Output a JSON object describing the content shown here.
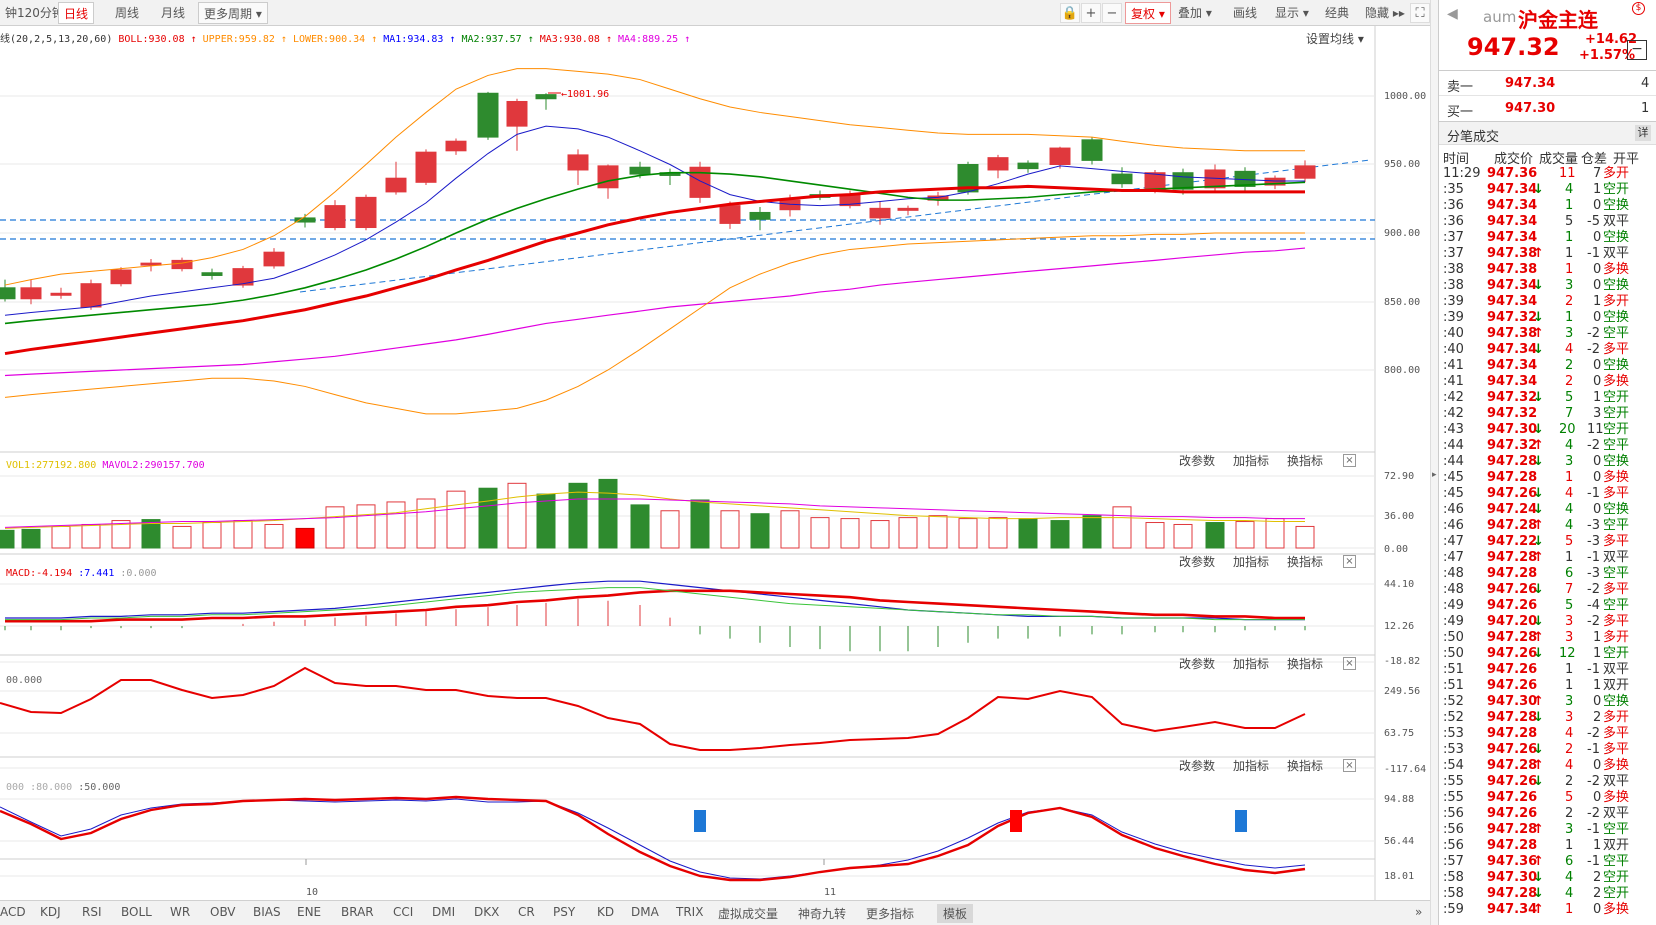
{
  "toolbar": {
    "left_tabs": [
      "钟",
      "120分钟",
      "日线",
      "周线",
      "月线",
      "更多周期"
    ],
    "active_tab": "日线",
    "right_items": [
      "复权",
      "叠加",
      "画线",
      "显示",
      "经典",
      "隐藏"
    ],
    "lock_icon": "lock-icon",
    "plus_icon": "plus-icon",
    "minus_icon": "minus-icon",
    "fullscreen_icon": "fullscreen-icon"
  },
  "indicator_line": {
    "prefix": "线(20,2,5,13,20,60)",
    "items": [
      {
        "text": "BOLL:930.08",
        "color": "#e60000",
        "arrow": "↑"
      },
      {
        "text": "UPPER:959.82",
        "color": "#ff8c00",
        "arrow": "↑"
      },
      {
        "text": "LOWER:900.34",
        "color": "#ff8c00",
        "arrow": "↑"
      },
      {
        "text": "MA1:934.83",
        "color": "#0000ff",
        "arrow": "↑"
      },
      {
        "text": "MA2:937.57",
        "color": "#008000",
        "arrow": "↑"
      },
      {
        "text": "MA3:930.08",
        "color": "#e60000",
        "arrow": "↑"
      },
      {
        "text": "MA4:889.25",
        "color": "#e000e0",
        "arrow": "↑"
      }
    ],
    "settings": "设置均线"
  },
  "price_axis": [
    "1000.00",
    "950.00",
    "900.00",
    "850.00",
    "800.00"
  ],
  "annotation_high": "1001.96",
  "volume_line": {
    "items": [
      {
        "text": "VOL1:277192.800",
        "color": "#e0c000"
      },
      {
        "text": "MAVOL2:290157.700",
        "color": "#e000e0"
      }
    ],
    "axis": [
      "72.90",
      "36.00",
      "0.00"
    ]
  },
  "macd_line": {
    "items": [
      {
        "text": "MACD:-4.194",
        "color": "#e60000"
      },
      {
        "text": ":7.441",
        "color": "#0000ff"
      },
      {
        "text": ":0.000",
        "color": "#999999"
      }
    ],
    "axis": [
      "44.10",
      "12.26",
      "-18.82"
    ]
  },
  "cci_line": {
    "items": [
      {
        "text": "00.000",
        "color": "#666666"
      }
    ],
    "axis": [
      "249.56",
      "63.75",
      "-117.64"
    ]
  },
  "kdj_line": {
    "items": [
      {
        "text": "000",
        "color": "#aaaaaa"
      },
      {
        "text": ":80.000",
        "color": "#aaaaaa"
      },
      {
        "text": ":50.000",
        "color": "#666666"
      }
    ],
    "axis": [
      "94.88",
      "56.44",
      "18.01"
    ]
  },
  "panel_controls": [
    "改参数",
    "加指标",
    "换指标"
  ],
  "x_labels": [
    "10",
    "11"
  ],
  "bottom_tabs": [
    "ACD",
    "KDJ",
    "RSI",
    "BOLL",
    "WR",
    "OBV",
    "BIAS",
    "ENE",
    "BRAR",
    "CCI",
    "DMI",
    "DKX",
    "CR",
    "PSY",
    "KD",
    "DMA",
    "TRIX",
    "虚拟成交量",
    "神奇九转",
    "更多指标",
    "模板"
  ],
  "active_bottom_tab": "模板",
  "quote": {
    "code": "aum",
    "name": "沪金主连",
    "price": "947.32",
    "change": "+14.62",
    "pct": "+1.57%",
    "sell_label": "卖一",
    "sell_price": "947.34",
    "sell_vol": "4",
    "buy_label": "买一",
    "buy_price": "947.30",
    "buy_vol": "1",
    "section_title": "分笔成交",
    "detail_btn": "详",
    "headers": [
      "时间",
      "成交价",
      "成交量",
      "仓差",
      "开平"
    ]
  },
  "trades": [
    [
      "11:29",
      "947.36",
      "",
      "11",
      "7",
      "多开"
    ],
    [
      ":35",
      "947.34",
      "down",
      "4",
      "1",
      "空开"
    ],
    [
      ":36",
      "947.34",
      "",
      "1",
      "0",
      "空换"
    ],
    [
      ":36",
      "947.34",
      "",
      "5",
      "-5",
      "双平"
    ],
    [
      ":37",
      "947.34",
      "",
      "1",
      "0",
      "空换"
    ],
    [
      ":37",
      "947.38",
      "up",
      "1",
      "-1",
      "双平"
    ],
    [
      ":38",
      "947.38",
      "",
      "1",
      "0",
      "多换"
    ],
    [
      ":38",
      "947.34",
      "down",
      "3",
      "0",
      "空换"
    ],
    [
      ":39",
      "947.34",
      "",
      "2",
      "1",
      "多开"
    ],
    [
      ":39",
      "947.32",
      "down",
      "1",
      "0",
      "空换"
    ],
    [
      ":40",
      "947.38",
      "up",
      "3",
      "-2",
      "空平"
    ],
    [
      ":40",
      "947.34",
      "down",
      "4",
      "-2",
      "多平"
    ],
    [
      ":41",
      "947.34",
      "",
      "2",
      "0",
      "空换"
    ],
    [
      ":41",
      "947.34",
      "",
      "2",
      "0",
      "多换"
    ],
    [
      ":42",
      "947.32",
      "down",
      "5",
      "1",
      "空开"
    ],
    [
      ":42",
      "947.32",
      "",
      "7",
      "3",
      "空开"
    ],
    [
      ":43",
      "947.30",
      "down",
      "20",
      "11",
      "空开"
    ],
    [
      ":44",
      "947.32",
      "up",
      "4",
      "-2",
      "空平"
    ],
    [
      ":44",
      "947.28",
      "down",
      "3",
      "0",
      "空换"
    ],
    [
      ":45",
      "947.28",
      "",
      "1",
      "0",
      "多换"
    ],
    [
      ":45",
      "947.26",
      "down",
      "4",
      "-1",
      "多平"
    ],
    [
      ":46",
      "947.24",
      "down",
      "4",
      "0",
      "空换"
    ],
    [
      ":46",
      "947.28",
      "up",
      "4",
      "-3",
      "空平"
    ],
    [
      ":47",
      "947.22",
      "down",
      "5",
      "-3",
      "多平"
    ],
    [
      ":47",
      "947.28",
      "up",
      "1",
      "-1",
      "双平"
    ],
    [
      ":48",
      "947.28",
      "",
      "6",
      "-3",
      "空平"
    ],
    [
      ":48",
      "947.26",
      "down",
      "7",
      "-2",
      "多平"
    ],
    [
      ":49",
      "947.26",
      "",
      "5",
      "-4",
      "空平"
    ],
    [
      ":49",
      "947.20",
      "down",
      "3",
      "-2",
      "多平"
    ],
    [
      ":50",
      "947.28",
      "up",
      "3",
      "1",
      "多开"
    ],
    [
      ":50",
      "947.26",
      "down",
      "12",
      "1",
      "空开"
    ],
    [
      ":51",
      "947.26",
      "",
      "1",
      "-1",
      "双平"
    ],
    [
      ":51",
      "947.26",
      "",
      "1",
      "1",
      "双开"
    ],
    [
      ":52",
      "947.30",
      "up",
      "3",
      "0",
      "空换"
    ],
    [
      ":52",
      "947.28",
      "down",
      "3",
      "2",
      "多开"
    ],
    [
      ":53",
      "947.28",
      "",
      "4",
      "-2",
      "多平"
    ],
    [
      ":53",
      "947.26",
      "down",
      "2",
      "-1",
      "多平"
    ],
    [
      ":54",
      "947.28",
      "up",
      "4",
      "0",
      "多换"
    ],
    [
      ":55",
      "947.26",
      "down",
      "2",
      "-2",
      "双平"
    ],
    [
      ":55",
      "947.26",
      "",
      "5",
      "0",
      "多换"
    ],
    [
      ":56",
      "947.26",
      "",
      "2",
      "-2",
      "双平"
    ],
    [
      ":56",
      "947.28",
      "up",
      "3",
      "-1",
      "空平"
    ],
    [
      ":56",
      "947.28",
      "",
      "1",
      "1",
      "双开"
    ],
    [
      ":57",
      "947.36",
      "up",
      "6",
      "-1",
      "空平"
    ],
    [
      ":58",
      "947.30",
      "down",
      "4",
      "2",
      "空开"
    ],
    [
      ":58",
      "947.28",
      "down",
      "4",
      "2",
      "空开"
    ],
    [
      ":59",
      "947.34",
      "up",
      "1",
      "0",
      "多换"
    ]
  ],
  "colors": {
    "up": "#e60000",
    "down": "#008000",
    "accent": "#e60000"
  }
}
